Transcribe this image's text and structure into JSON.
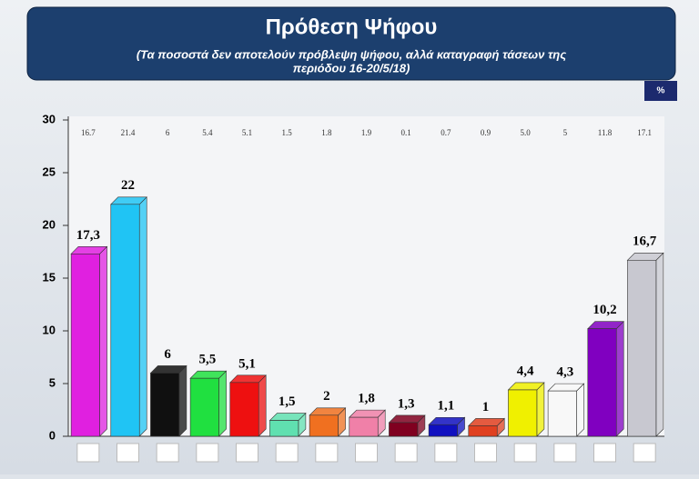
{
  "chart_data": {
    "type": "bar",
    "title": "Πρόθεση Ψήφου",
    "subtitle": [
      "(Τα ποσοστά δεν αποτελούν πρόβλεψη ψήφου, αλλά καταγραφή τάσεων  της",
      "περιόδου 16-20/5/18)"
    ],
    "unit": "%",
    "top_labels": [
      "16.7",
      "21.4",
      "6",
      "5.4",
      "5.1",
      "1.5",
      "1.8",
      "1.9",
      "0.1",
      "0.7",
      "0.9",
      "5.0",
      "5",
      "11.8",
      "17.1"
    ],
    "categories": [
      null,
      null,
      null,
      null,
      null,
      null,
      null,
      null,
      null,
      null,
      null,
      null,
      null,
      null,
      null
    ],
    "values": [
      17.3,
      22,
      6,
      5.5,
      5.1,
      1.5,
      2,
      1.8,
      1.3,
      1.1,
      1,
      4.4,
      4.3,
      10.2,
      16.7
    ],
    "value_labels": [
      "17,3",
      "22",
      "6",
      "5,5",
      "5,1",
      "1,5",
      "2",
      "1,8",
      "1,3",
      "1,1",
      "1",
      "4,4",
      "4,3",
      "10,2",
      "16,7"
    ],
    "colors": [
      "#e020e0",
      "#20c4f4",
      "#101010",
      "#20e040",
      "#ee1010",
      "#60e0b0",
      "#f07020",
      "#f080a8",
      "#800020",
      "#1010c0",
      "#e04020",
      "#f0f000",
      "#f8f8f8",
      "#8000c0",
      "#c8c8d0"
    ],
    "ylim": [
      0,
      30
    ],
    "yticks": [
      0,
      5,
      10,
      15,
      20,
      25,
      30
    ]
  }
}
